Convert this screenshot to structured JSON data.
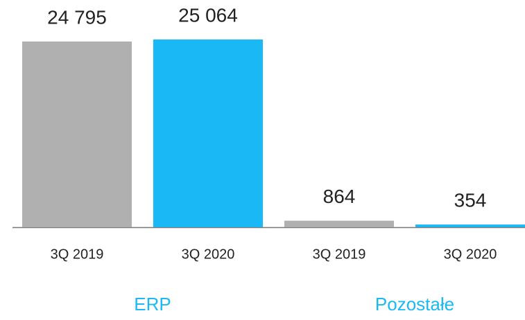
{
  "chart_data": {
    "type": "bar",
    "categories": [
      "ERP",
      "Pozostałe"
    ],
    "series": [
      {
        "name": "3Q 2019",
        "color": "#b0b0b0",
        "values": [
          24795,
          864
        ],
        "value_labels": [
          "24 795",
          "864"
        ]
      },
      {
        "name": "3Q 2020",
        "color": "#1ab9f5",
        "values": [
          25064,
          354
        ],
        "value_labels": [
          "25 064",
          "354"
        ]
      }
    ],
    "category_color": "#1ab9f5"
  }
}
